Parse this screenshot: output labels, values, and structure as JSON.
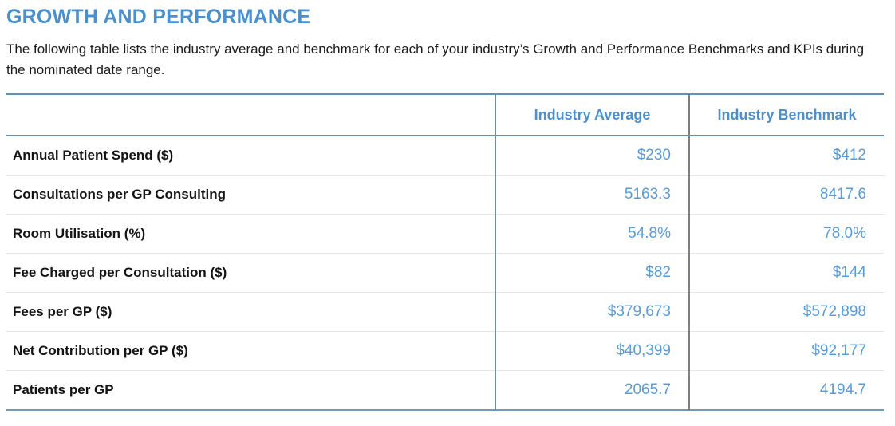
{
  "page": {
    "title": "GROWTH AND PERFORMANCE",
    "description": "The following table lists the industry average and benchmark for each of your industry’s Growth and Performance Benchmarks and KPIs during the nominated date range."
  },
  "table": {
    "columns": [
      "",
      "Industry Average",
      "Industry Benchmark"
    ],
    "rows": [
      {
        "label": "Annual Patient Spend ($)",
        "industry_average": "$230",
        "industry_benchmark": "$412"
      },
      {
        "label": "Consultations per GP Consulting",
        "industry_average": "5163.3",
        "industry_benchmark": "8417.6"
      },
      {
        "label": "Room Utilisation (%)",
        "industry_average": "54.8%",
        "industry_benchmark": "78.0%"
      },
      {
        "label": "Fee Charged per Consultation ($)",
        "industry_average": "$82",
        "industry_benchmark": "$144"
      },
      {
        "label": "Fees per GP ($)",
        "industry_average": "$379,673",
        "industry_benchmark": "$572,898"
      },
      {
        "label": "Net Contribution per GP ($)",
        "industry_average": "$40,399",
        "industry_benchmark": "$92,177"
      },
      {
        "label": "Patients per GP",
        "industry_average": "2065.7",
        "industry_benchmark": "4194.7"
      }
    ]
  },
  "colors": {
    "title_blue": "#4a90cd",
    "header_text_blue": "#4e8ec9",
    "value_blue": "#5b9bd5",
    "table_line_blue": "#5f92b5",
    "column_divider_gray": "#7f7f7f",
    "row_divider_light": "#e2e6ea",
    "body_text": "#1c1c1c"
  }
}
